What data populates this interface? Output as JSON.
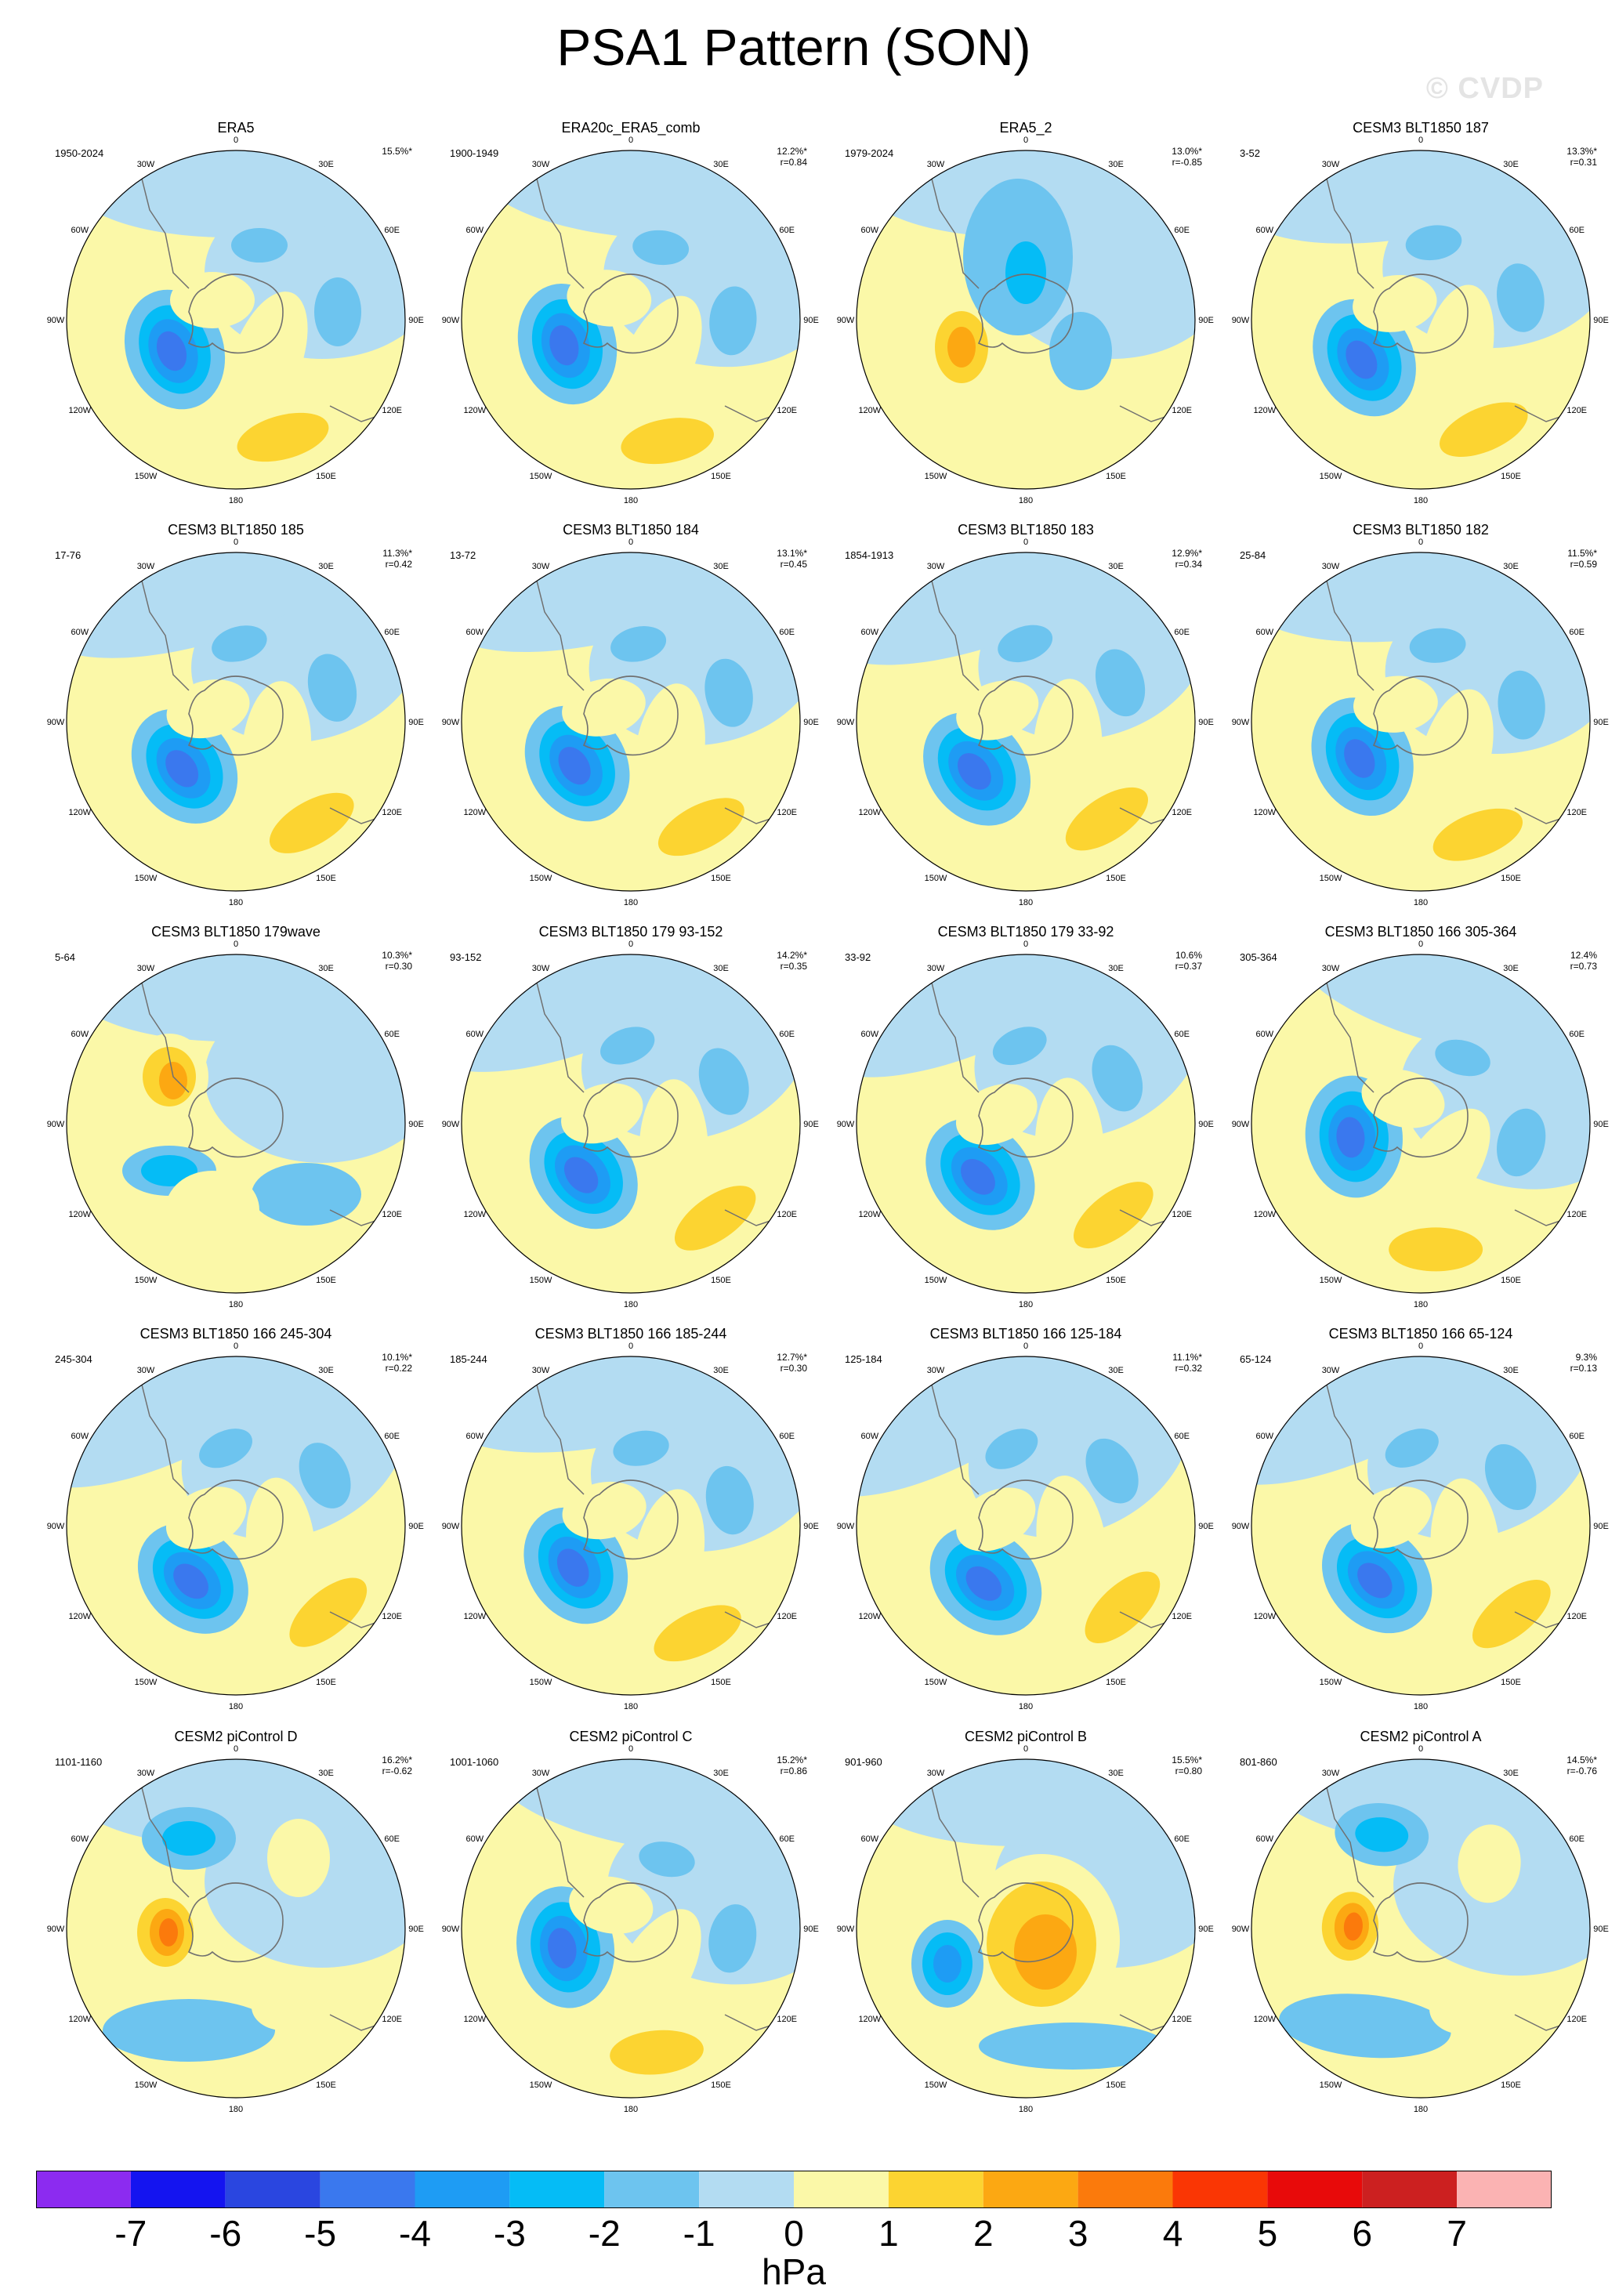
{
  "title": "PSA1 Pattern (SON)",
  "watermark": "© CVDP",
  "lon_labels": [
    "0",
    "30E",
    "60E",
    "90E",
    "120E",
    "150E",
    "180",
    "150W",
    "120W",
    "90W",
    "60W",
    "30W"
  ],
  "colorbar": {
    "levels": [
      "-7",
      "-6",
      "-5",
      "-4",
      "-3",
      "-2",
      "-1",
      "0",
      "1",
      "2",
      "3",
      "4",
      "5",
      "6",
      "7"
    ],
    "colors": [
      "#8c2bf0",
      "#1414f0",
      "#2a46e0",
      "#3a78ee",
      "#1e9cf4",
      "#05bcf6",
      "#6dc4ef",
      "#b3dcf2",
      "#fbf8a8",
      "#fcd431",
      "#fca812",
      "#fb7a0c",
      "#fa3604",
      "#e80a0a",
      "#cc2020",
      "#fbb3b3"
    ],
    "units": "hPa"
  },
  "panels": [
    {
      "title": "ERA5",
      "years": "1950-2024",
      "pct": "15.5%*",
      "r": "",
      "mode": 0,
      "rot": 0
    },
    {
      "title": "ERA20c_ERA5_comb",
      "years": "1900-1949",
      "pct": "12.2%*",
      "r": "r=0.84",
      "mode": 0,
      "rot": 5
    },
    {
      "title": "ERA5_2",
      "years": "1979-2024",
      "pct": "13.0%*",
      "r": "r=-0.85",
      "mode": 1,
      "rot": 0
    },
    {
      "title": "CESM3 BLT1850 187",
      "years": "3-52",
      "pct": "13.3%*",
      "r": "r=0.31",
      "mode": 0,
      "rot": -8
    },
    {
      "title": "CESM3 BLT1850 185",
      "years": "17-76",
      "pct": "11.3%*",
      "r": "r=0.42",
      "mode": 0,
      "rot": -15
    },
    {
      "title": "CESM3 BLT1850 184",
      "years": "13-72",
      "pct": "13.1%*",
      "r": "r=0.45",
      "mode": 0,
      "rot": -12
    },
    {
      "title": "CESM3 BLT1850 183",
      "years": "1854-1913",
      "pct": "12.9%*",
      "r": "r=0.34",
      "mode": 0,
      "rot": -18
    },
    {
      "title": "CESM3 BLT1850 182",
      "years": "25-84",
      "pct": "11.5%*",
      "r": "r=0.59",
      "mode": 0,
      "rot": -5
    },
    {
      "title": "CESM3 BLT1850 179wave",
      "years": "5-64",
      "pct": "10.3%*",
      "r": "r=0.30",
      "mode": 2,
      "rot": 0
    },
    {
      "title": "CESM3 BLT1850 179 93-152",
      "years": "93-152",
      "pct": "14.2%*",
      "r": "r=0.35",
      "mode": 0,
      "rot": -20
    },
    {
      "title": "CESM3 BLT1850 179 33-92",
      "years": "33-92",
      "pct": "10.6%",
      "r": "r=0.37",
      "mode": 0,
      "rot": -22
    },
    {
      "title": "CESM3 BLT1850 166 305-364",
      "years": "305-364",
      "pct": "12.4%",
      "r": "r=0.73",
      "mode": 0,
      "rot": 15
    },
    {
      "title": "CESM3 BLT1850 166 245-304",
      "years": "245-304",
      "pct": "10.1%*",
      "r": "r=0.22",
      "mode": 0,
      "rot": -25
    },
    {
      "title": "CESM3 BLT1850 166 185-244",
      "years": "185-244",
      "pct": "12.7%*",
      "r": "r=0.30",
      "mode": 0,
      "rot": -10
    },
    {
      "title": "CESM3 BLT1850 166 125-184",
      "years": "125-184",
      "pct": "11.1%*",
      "r": "r=0.32",
      "mode": 0,
      "rot": -28
    },
    {
      "title": "CESM3 BLT1850 166 65-124",
      "years": "65-124",
      "pct": "9.3%",
      "r": "r=0.13",
      "mode": 0,
      "rot": -24
    },
    {
      "title": "CESM2 piControl D",
      "years": "1101-1160",
      "pct": "16.2%*",
      "r": "r=-0.62",
      "mode": 3,
      "rot": 0
    },
    {
      "title": "CESM2 piControl C",
      "years": "1001-1060",
      "pct": "15.2%*",
      "r": "r=0.86",
      "mode": 0,
      "rot": 10
    },
    {
      "title": "CESM2 piControl B",
      "years": "901-960",
      "pct": "15.5%*",
      "r": "r=0.80",
      "mode": 4,
      "rot": 0
    },
    {
      "title": "CESM2 piControl A",
      "years": "801-860",
      "pct": "14.5%*",
      "r": "r=-0.76",
      "mode": 3,
      "rot": 5
    }
  ]
}
